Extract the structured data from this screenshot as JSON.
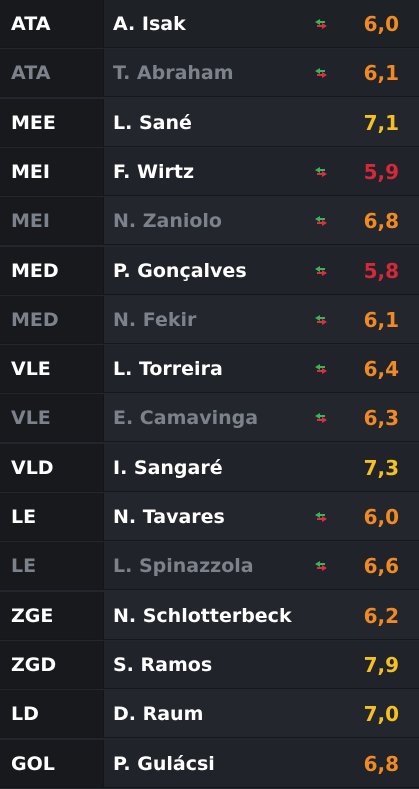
{
  "players": [
    {
      "pos": "ATA",
      "name": "A. Isak",
      "rating": "6,0",
      "swap": true,
      "sub": false,
      "color": "orange"
    },
    {
      "pos": "ATA",
      "name": "T. Abraham",
      "rating": "6,1",
      "swap": true,
      "sub": true,
      "color": "orange"
    },
    {
      "pos": "MEE",
      "name": "L. Sané",
      "rating": "7,1",
      "swap": false,
      "sub": false,
      "color": "yellow"
    },
    {
      "pos": "MEI",
      "name": "F. Wirtz",
      "rating": "5,9",
      "swap": true,
      "sub": false,
      "color": "red"
    },
    {
      "pos": "MEI",
      "name": "N. Zaniolo",
      "rating": "6,8",
      "swap": true,
      "sub": true,
      "color": "orange"
    },
    {
      "pos": "MED",
      "name": "P. Gonçalves",
      "rating": "5,8",
      "swap": true,
      "sub": false,
      "color": "red"
    },
    {
      "pos": "MED",
      "name": "N. Fekir",
      "rating": "6,1",
      "swap": true,
      "sub": true,
      "color": "orange"
    },
    {
      "pos": "VLE",
      "name": "L. Torreira",
      "rating": "6,4",
      "swap": true,
      "sub": false,
      "color": "orange"
    },
    {
      "pos": "VLE",
      "name": "E. Camavinga",
      "rating": "6,3",
      "swap": true,
      "sub": true,
      "color": "orange"
    },
    {
      "pos": "VLD",
      "name": "I. Sangaré",
      "rating": "7,3",
      "swap": false,
      "sub": false,
      "color": "yellow"
    },
    {
      "pos": "LE",
      "name": "N. Tavares",
      "rating": "6,0",
      "swap": true,
      "sub": false,
      "color": "orange"
    },
    {
      "pos": "LE",
      "name": "L. Spinazzola",
      "rating": "6,6",
      "swap": true,
      "sub": true,
      "color": "orange"
    },
    {
      "pos": "ZGE",
      "name": "N. Schlotterbeck",
      "rating": "6,2",
      "swap": false,
      "sub": false,
      "color": "orange"
    },
    {
      "pos": "ZGD",
      "name": "S. Ramos",
      "rating": "7,9",
      "swap": false,
      "sub": false,
      "color": "yellow"
    },
    {
      "pos": "LD",
      "name": "D. Raum",
      "rating": "7,0",
      "swap": false,
      "sub": false,
      "color": "yellow"
    },
    {
      "pos": "GOL",
      "name": "P. Gulácsi",
      "rating": "6,8",
      "swap": false,
      "sub": false,
      "color": "orange"
    }
  ],
  "colors": {
    "orange": "#f08a24",
    "yellow": "#f4c122",
    "red": "#d6283b",
    "swap_green": "#3cb25a",
    "swap_red": "#d8323f"
  },
  "icons": {
    "swap": "substitution-arrows-icon"
  }
}
